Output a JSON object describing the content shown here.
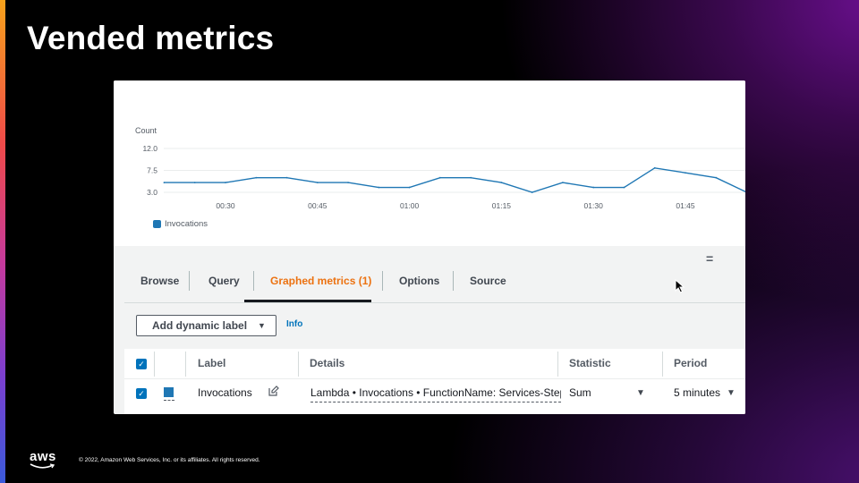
{
  "slide": {
    "title": "Vended metrics",
    "footer": "© 2022, Amazon Web Services, Inc. or its affiliates. All rights reserved.",
    "logo_text": "aws"
  },
  "chart_data": {
    "type": "line",
    "ylabel": "Count",
    "y_ticks": [
      "12.0",
      "7.5",
      "3.0"
    ],
    "ylim": [
      3.0,
      12.0
    ],
    "x_ticks": [
      "00:30",
      "00:45",
      "01:00",
      "01:15",
      "01:30",
      "01:45"
    ],
    "x_times_min": [
      30,
      45,
      60,
      75,
      90,
      105
    ],
    "series": [
      {
        "name": "Invocations",
        "color": "#1f77b4",
        "x": [
          20,
          25,
          30,
          35,
          40,
          45,
          50,
          55,
          60,
          65,
          70,
          75,
          80,
          85,
          90,
          95,
          100,
          105,
          110,
          115
        ],
        "values": [
          5,
          5,
          5,
          6,
          6,
          5,
          5,
          4,
          4,
          6,
          6,
          5,
          3,
          5,
          4,
          4,
          8,
          7,
          6,
          3
        ]
      }
    ],
    "legend": "bottom-left",
    "grid": true
  },
  "tabs": [
    {
      "label": "Browse"
    },
    {
      "label": "Query"
    },
    {
      "label": "Graphed metrics (1)"
    },
    {
      "label": "Options"
    },
    {
      "label": "Source"
    }
  ],
  "toolbar": {
    "dynamic_label_button": "Add dynamic label",
    "info_link": "Info"
  },
  "table": {
    "headers": [
      "Label",
      "Details",
      "Statistic",
      "Period"
    ],
    "rows": [
      {
        "label": "Invocations",
        "details": "Lambda • Invocations • FunctionName: Services-Step",
        "statistic": "Sum",
        "period": "5 minutes",
        "color": "#1f77b4"
      }
    ]
  }
}
